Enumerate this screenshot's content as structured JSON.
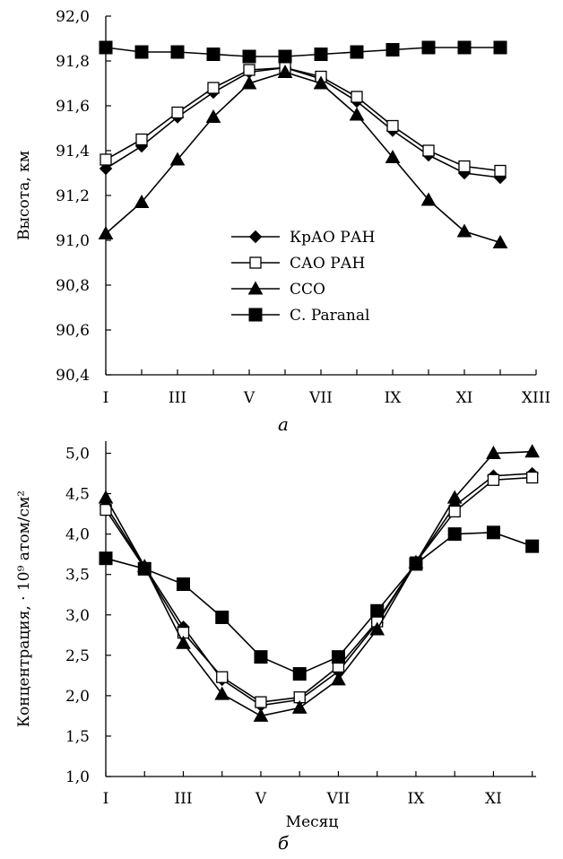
{
  "chart_data": [
    {
      "type": "line",
      "panel_label": "а",
      "xlabel": "",
      "ylabel": "Высота, км",
      "xlim": [
        1,
        13
      ],
      "ylim": [
        90.4,
        92.0
      ],
      "x_tick_values": [
        1,
        3,
        5,
        7,
        9,
        11,
        13
      ],
      "x_tick_labels": [
        "I",
        "III",
        "V",
        "VII",
        "IX",
        "XI",
        "XIII"
      ],
      "y_tick_values": [
        90.4,
        90.6,
        90.8,
        91.0,
        91.2,
        91.4,
        91.6,
        91.8,
        92.0
      ],
      "y_tick_labels": [
        "90,4",
        "90,6",
        "90,8",
        "91,0",
        "91,2",
        "91,4",
        "91,6",
        "91,8",
        "92,0"
      ],
      "grid": false,
      "legend_position": "center",
      "x": [
        1,
        2,
        3,
        4,
        5,
        6,
        7,
        8,
        9,
        10,
        11,
        12
      ],
      "series": [
        {
          "name": "КрАО РАН",
          "marker": "diamond",
          "fill": "#000000",
          "values": [
            91.32,
            91.42,
            91.55,
            91.66,
            91.75,
            91.77,
            91.72,
            91.62,
            91.49,
            91.38,
            91.3,
            91.28
          ]
        },
        {
          "name": "САО РАН",
          "marker": "square-open",
          "fill": "#ffffff",
          "values": [
            91.36,
            91.45,
            91.57,
            91.68,
            91.76,
            91.77,
            91.73,
            91.64,
            91.51,
            91.4,
            91.33,
            91.31
          ]
        },
        {
          "name": "ССО",
          "marker": "triangle",
          "fill": "#000000",
          "values": [
            91.03,
            91.17,
            91.36,
            91.55,
            91.7,
            91.75,
            91.7,
            91.56,
            91.37,
            91.18,
            91.04,
            90.99
          ]
        },
        {
          "name": "С. Paranal",
          "marker": "square",
          "fill": "#000000",
          "values": [
            91.86,
            91.84,
            91.84,
            91.83,
            91.82,
            91.82,
            91.83,
            91.84,
            91.85,
            91.86,
            91.86,
            91.86
          ]
        }
      ]
    },
    {
      "type": "line",
      "panel_label": "б",
      "xlabel": "Месяц",
      "ylabel": "Концентрация, · 10⁹ атом/см²",
      "xlim": [
        1,
        12.1
      ],
      "ylim": [
        1.0,
        5.15
      ],
      "x_tick_values": [
        1,
        3,
        5,
        7,
        9,
        11
      ],
      "x_tick_labels": [
        "I",
        "III",
        "V",
        "VII",
        "IX",
        "XI"
      ],
      "y_tick_values": [
        1.0,
        1.5,
        2.0,
        2.5,
        3.0,
        3.5,
        4.0,
        4.5,
        5.0
      ],
      "y_tick_labels": [
        "1,0",
        "1,5",
        "2,0",
        "2,5",
        "3,0",
        "3,5",
        "4,0",
        "4,5",
        "5,0"
      ],
      "grid": false,
      "x": [
        1,
        2,
        3,
        4,
        5,
        6,
        7,
        8,
        9,
        10,
        11,
        12
      ],
      "series": [
        {
          "name": "КрАО РАН",
          "marker": "diamond",
          "fill": "#000000",
          "values": [
            4.35,
            3.6,
            2.85,
            2.2,
            1.88,
            1.95,
            2.3,
            2.9,
            3.65,
            4.35,
            4.72,
            4.75
          ]
        },
        {
          "name": "САО РАН",
          "marker": "square-open",
          "fill": "#ffffff",
          "values": [
            4.3,
            3.58,
            2.78,
            2.23,
            1.92,
            1.98,
            2.36,
            2.92,
            3.65,
            4.28,
            4.67,
            4.7
          ]
        },
        {
          "name": "ССО",
          "marker": "triangle",
          "fill": "#000000",
          "values": [
            4.45,
            3.6,
            2.65,
            2.02,
            1.75,
            1.85,
            2.2,
            2.82,
            3.65,
            4.45,
            5.0,
            5.02
          ]
        },
        {
          "name": "С. Paranal",
          "marker": "square",
          "fill": "#000000",
          "values": [
            3.7,
            3.57,
            3.38,
            2.97,
            2.48,
            2.27,
            2.48,
            3.05,
            3.63,
            4.0,
            4.02,
            3.85
          ]
        }
      ]
    }
  ]
}
